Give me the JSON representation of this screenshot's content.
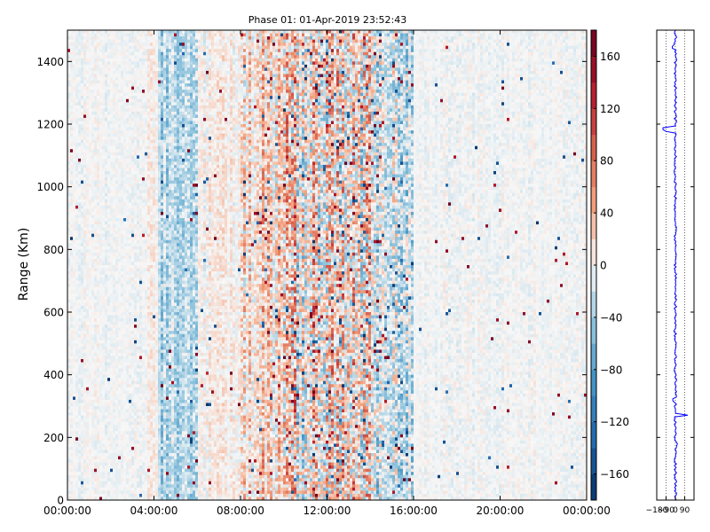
{
  "chart_data": [
    {
      "type": "heatmap",
      "title": "Phase 01: 01-Apr-2019 23:52:43",
      "xlabel": "",
      "ylabel": "Range (Km)",
      "x_ticks": [
        "00:00:00",
        "04:00:00",
        "08:00:00",
        "12:00:00",
        "16:00:00",
        "20:00:00",
        "00:00:00"
      ],
      "x_range_hours": [
        0,
        24
      ],
      "ylim": [
        0,
        1500
      ],
      "y_ticks": [
        0,
        200,
        400,
        600,
        800,
        1000,
        1200,
        1400
      ],
      "value_range": [
        -180,
        180
      ],
      "colormap": "RdBu_r",
      "colorbar_ticks": [
        -160,
        -120,
        -80,
        -40,
        0,
        40,
        80,
        120,
        160
      ],
      "column_activity": [
        {
          "from_hour": 0.0,
          "to_hour": 4.0,
          "level": 0.12,
          "bias": -0.15
        },
        {
          "from_hour": 3.7,
          "to_hour": 4.2,
          "level": 0.15,
          "bias": 0.45
        },
        {
          "from_hour": 4.2,
          "to_hour": 6.0,
          "level": 0.35,
          "bias": -0.7
        },
        {
          "from_hour": 6.0,
          "to_hour": 8.0,
          "level": 0.22,
          "bias": 0.2
        },
        {
          "from_hour": 8.0,
          "to_hour": 10.0,
          "level": 0.55,
          "bias": 0.35
        },
        {
          "from_hour": 10.0,
          "to_hour": 14.0,
          "level": 0.85,
          "bias": 0.15
        },
        {
          "from_hour": 14.0,
          "to_hour": 16.0,
          "level": 0.6,
          "bias": -0.3
        },
        {
          "from_hour": 16.0,
          "to_hour": 24.0,
          "level": 0.12,
          "bias": -0.2
        }
      ],
      "seed": 7
    },
    {
      "type": "line",
      "title": "",
      "xlabel": "",
      "ylabel": "",
      "x_ticks": [
        -180,
        -90,
        0,
        90
      ],
      "x_tick_labels": [
        "−180",
        "−90",
        "0",
        "90"
      ],
      "xlim": [
        -180,
        180
      ],
      "ylim": [
        0,
        1500
      ],
      "grid": true,
      "series": [
        {
          "color": "#0000ff",
          "baseline": 0,
          "jitter": 12,
          "spikes": [
            {
              "y": 1445,
              "value": -30
            },
            {
              "y": 1180,
              "value": -120
            },
            {
              "y": 1190,
              "value": -120
            },
            {
              "y": 1178,
              "value": -90
            },
            {
              "y": 320,
              "value": -25
            },
            {
              "y": 270,
              "value": 150
            },
            {
              "y": 273,
              "value": 120
            },
            {
              "y": 180,
              "value": 20
            },
            {
              "y": 20,
              "value": 10
            }
          ]
        }
      ]
    }
  ]
}
